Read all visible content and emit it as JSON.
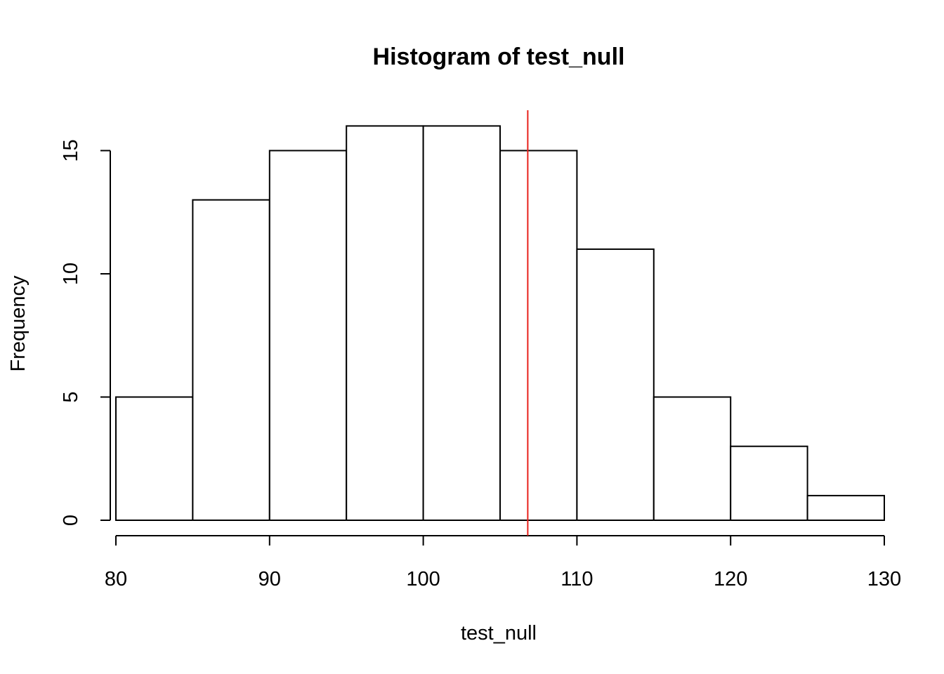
{
  "chart_data": {
    "type": "bar",
    "title": "Histogram of test_null",
    "xlabel": "test_null",
    "ylabel": "Frequency",
    "bins": [
      {
        "start": 80,
        "end": 85,
        "count": 5
      },
      {
        "start": 85,
        "end": 90,
        "count": 13
      },
      {
        "start": 90,
        "end": 95,
        "count": 15
      },
      {
        "start": 95,
        "end": 100,
        "count": 16
      },
      {
        "start": 100,
        "end": 105,
        "count": 16
      },
      {
        "start": 105,
        "end": 110,
        "count": 15
      },
      {
        "start": 110,
        "end": 115,
        "count": 11
      },
      {
        "start": 115,
        "end": 120,
        "count": 5
      },
      {
        "start": 120,
        "end": 125,
        "count": 3
      },
      {
        "start": 125,
        "end": 130,
        "count": 1
      }
    ],
    "xlim": [
      80,
      130
    ],
    "ylim": [
      0,
      16
    ],
    "x_ticks": [
      80,
      90,
      100,
      110,
      120,
      130
    ],
    "y_ticks": [
      0,
      5,
      10,
      15
    ],
    "reference_line": {
      "x": 106.8,
      "color": "#e8211b"
    },
    "grid": false
  }
}
